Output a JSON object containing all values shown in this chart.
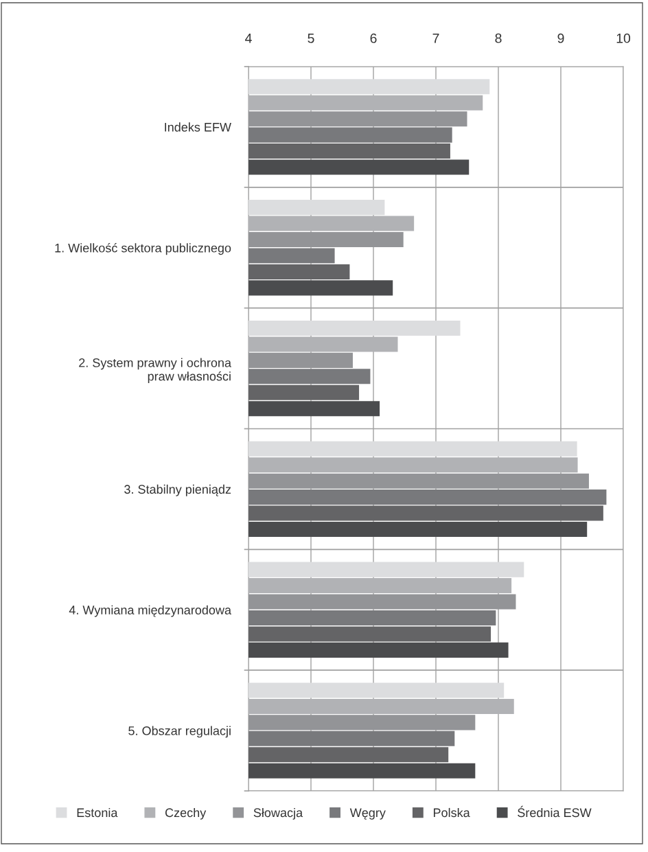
{
  "chart_data": {
    "type": "bar",
    "orientation": "horizontal",
    "categories": [
      "Indeks EFW",
      "1. Wielkość sektora publicznego",
      "2. System prawny i ochrona\npraw własności",
      "3. Stabilny pieniądz",
      "4. Wymiana międzynarodowa",
      "5. Obszar regulacji"
    ],
    "series": [
      {
        "name": "Estonia",
        "color": "#dcdddf",
        "values": [
          7.86,
          6.18,
          7.39,
          9.26,
          8.41,
          8.09
        ]
      },
      {
        "name": "Czechy",
        "color": "#b1b2b5",
        "values": [
          7.75,
          6.65,
          6.39,
          9.27,
          8.21,
          8.25
        ]
      },
      {
        "name": "Słowacja",
        "color": "#939497",
        "values": [
          7.5,
          6.48,
          5.67,
          9.45,
          8.28,
          7.63
        ]
      },
      {
        "name": "Węgry",
        "color": "#78797c",
        "values": [
          7.26,
          5.38,
          5.95,
          9.73,
          7.96,
          7.3
        ]
      },
      {
        "name": "Polska",
        "color": "#646466",
        "values": [
          7.23,
          5.62,
          5.77,
          9.68,
          7.88,
          7.2
        ]
      },
      {
        "name": "Średnia ESW",
        "color": "#4b4c4e",
        "values": [
          7.53,
          6.31,
          6.1,
          9.42,
          8.16,
          7.63
        ]
      }
    ],
    "xlim": [
      4,
      10
    ],
    "xticks": [
      4,
      5,
      6,
      7,
      8,
      9,
      10
    ],
    "grid": "x",
    "legend": "bottom"
  }
}
